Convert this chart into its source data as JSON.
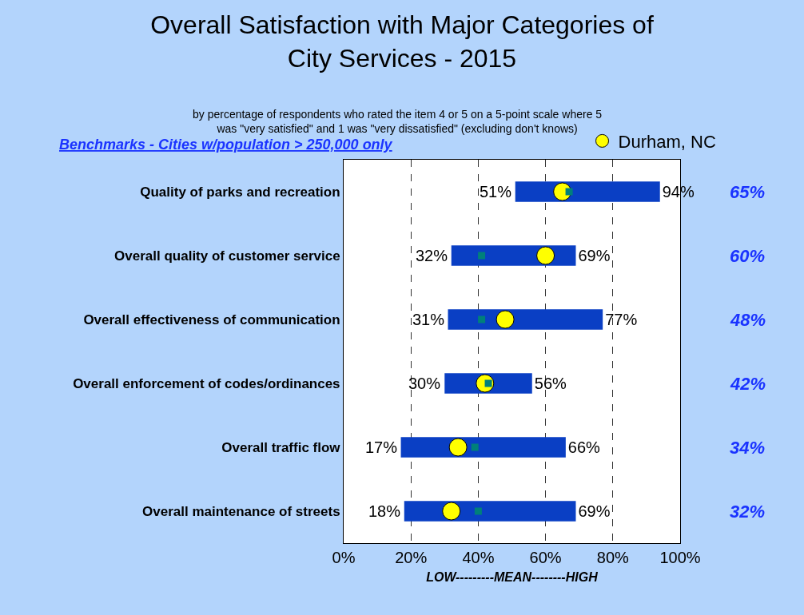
{
  "chart_data": {
    "type": "bar",
    "orientation": "horizontal",
    "title": "Overall Satisfaction with Major Categories of City Services - 2015",
    "subtitle": "by percentage of respondents who rated the item 4 or 5 on a 5-point scale where 5 was \"very satisfied\" and 1 was \"very dissatisfied\" (excluding don't knows)",
    "xlabel": "LOW---------MEAN--------HIGH",
    "categories": [
      "Quality of parks and recreation",
      "Overall quality of customer service",
      "Overall effectiveness of communication",
      "Overall enforcement of codes/ordinances",
      "Overall traffic flow",
      "Overall maintenance of streets"
    ],
    "series": [
      {
        "color": "#0a3fc4",
        "base": [
          51,
          32,
          31,
          30,
          17,
          18
        ],
        "values": [
          43,
          37,
          46,
          26,
          49,
          51
        ],
        "value_labels": [
          "94%",
          "69%",
          "77%",
          "56%",
          "66%",
          "69%"
        ]
      },
      {
        "type": "scatter",
        "marker": "circle",
        "name": "Durham, NC",
        "color": "#ffff00",
        "values": [
          65,
          60,
          48,
          42,
          34,
          32
        ],
        "value_labels": [
          "65%",
          "60%",
          "48%",
          "42%",
          "34%",
          "32%"
        ]
      },
      {
        "type": "scatter",
        "marker": "square",
        "color": "#00807a",
        "values": [
          67,
          41,
          41,
          43,
          39,
          40
        ]
      }
    ],
    "annotations": [
      "Benchmarks - Cities w/population > 250,000 only",
      {
        "text": "51%",
        "x": 51,
        "y": "Quality of parks and recreation"
      },
      {
        "text": "32%",
        "x": 32,
        "y": "Overall quality of customer service"
      },
      {
        "text": "31%",
        "x": 31,
        "y": "Overall effectiveness of communication"
      },
      {
        "text": "30%",
        "x": 30,
        "y": "Overall enforcement of codes/ordinances"
      },
      {
        "text": "17%",
        "x": 17,
        "y": "Overall traffic flow"
      },
      {
        "text": "18%",
        "x": 18,
        "y": "Overall maintenance of streets"
      }
    ],
    "xlim": [
      0,
      100
    ],
    "xticks": [
      {
        "value": 0,
        "label": "0%"
      },
      {
        "value": 20,
        "label": "20%"
      },
      {
        "value": 40,
        "label": "40%"
      },
      {
        "value": 60,
        "label": "60%"
      },
      {
        "value": 80,
        "label": "80%"
      },
      {
        "value": 100,
        "label": "100%"
      }
    ],
    "grid": "x",
    "legend": "top right"
  }
}
